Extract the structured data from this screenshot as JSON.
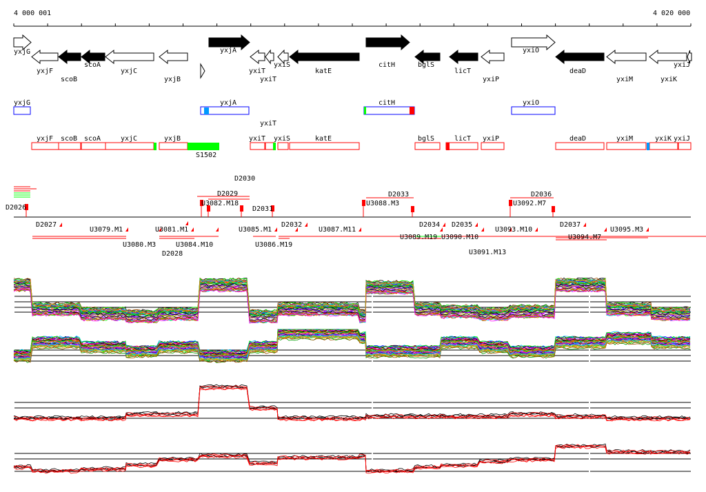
{
  "axis": {
    "start_label": "4 000 001",
    "end_label": "4 020 000"
  },
  "genes": [
    "yxjG",
    "yxjF",
    "scoB",
    "scoA",
    "yxjC",
    "yxjB",
    "yxjA",
    "yxiT",
    "yxiT",
    "yxiS",
    "katE",
    "citH",
    "bglS",
    "licT",
    "yxiP",
    "yxiO",
    "deaD",
    "yxiM",
    "yxiK",
    "yxiJ"
  ],
  "blue_track": [
    "yxjG",
    "yxjA",
    "citH",
    "yxiO"
  ],
  "red_track": [
    "yxjF",
    "scoB",
    "scoA",
    "yxjC",
    "yxjB",
    "yxiT",
    "yxiT",
    "yxiS",
    "katE",
    "bglS",
    "licT",
    "yxiP",
    "deaD",
    "yxiM",
    "yxiK",
    "yxiJ"
  ],
  "segment_label": "S1502",
  "upper_features": [
    "D2026",
    "U3082.M18",
    "D2029",
    "D2030",
    "D2031",
    "U3088.M3",
    "D2033",
    "U3092.M7",
    "D2036"
  ],
  "lower_features": [
    "D2027",
    "U3079.M1",
    "U3080.M3",
    "U3081.M1",
    "U3084.M10",
    "D2028",
    "U3085.M1",
    "U3086.M19",
    "D2032",
    "U3087.M11",
    "D2034",
    "U3089.M19",
    "U3090.M10",
    "D2035",
    "U3091.M13",
    "U3093.M10",
    "D2037",
    "U3094.M7",
    "U3095.M3"
  ],
  "colors": {
    "forward_box": "#0000ff",
    "reverse_box": "#ff0000",
    "highlight": "#00ff00",
    "cyan": "#0099ff"
  }
}
